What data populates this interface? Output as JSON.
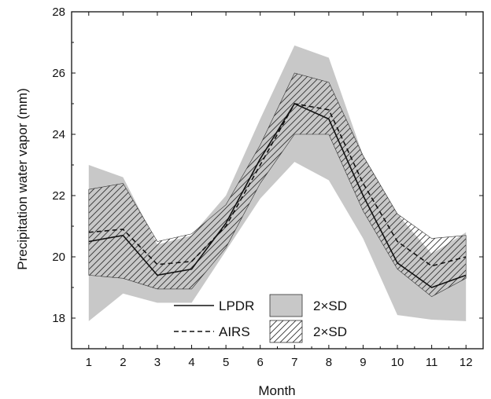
{
  "chart_data": {
    "type": "line",
    "xlabel": "Month",
    "ylabel": "Precipitation water vapor (mm)",
    "xlim": [
      0.5,
      12.5
    ],
    "ylim": [
      17,
      28
    ],
    "x": [
      1,
      2,
      3,
      4,
      5,
      6,
      7,
      8,
      9,
      10,
      11,
      12
    ],
    "x_ticks": [
      "1",
      "2",
      "3",
      "4",
      "5",
      "6",
      "7",
      "8",
      "9",
      "10",
      "11",
      "12"
    ],
    "y_ticks": [
      "18",
      "20",
      "22",
      "24",
      "26",
      "28"
    ],
    "y_tick_values": [
      18,
      20,
      22,
      24,
      26,
      28
    ],
    "grid": false,
    "legend_position": "bottom-center",
    "series": [
      {
        "name": "LPDR",
        "line_style": "solid",
        "color": "#111111",
        "values": [
          20.5,
          20.7,
          19.4,
          19.6,
          21.1,
          23.2,
          25.0,
          24.5,
          22.0,
          19.8,
          19.0,
          19.4
        ],
        "band_label": "2×SD",
        "band_style": "gray-fill",
        "band_color": "#c8c8c8",
        "band_lower": [
          17.9,
          18.8,
          18.5,
          18.5,
          20.2,
          21.9,
          23.1,
          22.5,
          20.6,
          18.1,
          17.95,
          17.9
        ],
        "band_upper": [
          23.0,
          22.6,
          20.4,
          20.7,
          22.0,
          24.5,
          26.9,
          26.5,
          23.3,
          21.4,
          20.1,
          20.8
        ]
      },
      {
        "name": "AIRS",
        "line_style": "dashed",
        "color": "#111111",
        "values": [
          20.8,
          20.9,
          19.75,
          19.85,
          21.0,
          23.0,
          25.0,
          24.8,
          22.4,
          20.5,
          19.7,
          20.0
        ],
        "band_label": "2×SD",
        "band_style": "hatched",
        "band_color": "#333333",
        "band_lower": [
          19.4,
          19.3,
          18.95,
          18.95,
          20.3,
          22.4,
          24.0,
          24.0,
          21.5,
          19.6,
          18.7,
          19.3
        ],
        "band_upper": [
          22.2,
          22.4,
          20.5,
          20.75,
          21.7,
          23.65,
          26.0,
          25.7,
          23.3,
          21.4,
          20.6,
          20.7
        ]
      }
    ]
  }
}
